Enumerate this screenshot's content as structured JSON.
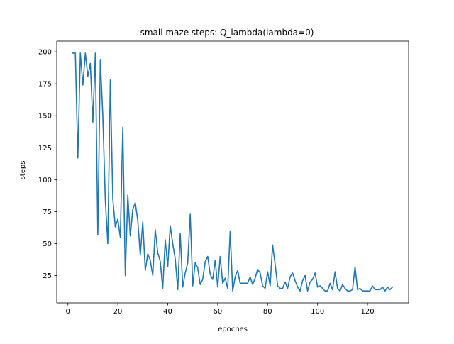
{
  "chart_data": {
    "type": "line",
    "title": "small maze steps: Q_lambda(lambda=0)",
    "xlabel": "epoches",
    "ylabel": "steps",
    "xlim": [
      -4.45,
      136.45
    ],
    "ylim": [
      3.65,
      208.4
    ],
    "xticks": [
      0,
      20,
      40,
      60,
      80,
      100,
      120
    ],
    "yticks": [
      25,
      50,
      75,
      100,
      125,
      150,
      175,
      200
    ],
    "grid": false,
    "legend": "none",
    "series": [
      {
        "color": "#1f77b4",
        "x": [
          2,
          3,
          4,
          5,
          6,
          7,
          8,
          9,
          10,
          11,
          12,
          13,
          14,
          15,
          16,
          17,
          18,
          19,
          20,
          21,
          22,
          23,
          24,
          25,
          26,
          27,
          28,
          29,
          30,
          31,
          32,
          33,
          34,
          35,
          36,
          37,
          38,
          39,
          40,
          41,
          42,
          43,
          44,
          45,
          46,
          47,
          48,
          49,
          50,
          51,
          52,
          53,
          54,
          55,
          56,
          57,
          58,
          59,
          60,
          61,
          62,
          63,
          64,
          65,
          66,
          67,
          68,
          69,
          70,
          71,
          72,
          73,
          74,
          75,
          76,
          77,
          78,
          79,
          80,
          81,
          82,
          83,
          84,
          85,
          86,
          87,
          88,
          89,
          90,
          91,
          92,
          93,
          94,
          95,
          96,
          97,
          98,
          99,
          100,
          101,
          102,
          103,
          104,
          105,
          106,
          107,
          108,
          109,
          110,
          111,
          112,
          113,
          114,
          115,
          116,
          117,
          118,
          119,
          120,
          121,
          122,
          123,
          124,
          125,
          126,
          127,
          128,
          129,
          130
        ],
        "y": [
          199,
          199,
          117,
          199,
          174,
          199,
          181,
          191,
          145,
          199,
          57,
          194,
          150,
          84,
          50,
          178,
          85,
          63,
          69,
          55,
          141,
          25,
          88,
          56,
          77,
          82,
          68,
          41,
          67,
          29,
          42,
          37,
          25,
          61,
          43,
          36,
          15,
          53,
          32,
          64,
          50,
          38,
          14,
          58,
          16,
          27,
          35,
          73,
          17,
          35,
          31,
          18,
          22,
          36,
          40,
          26,
          22,
          37,
          16,
          40,
          19,
          23,
          15,
          60,
          13,
          24,
          29,
          19,
          19,
          19,
          19,
          24,
          18,
          23,
          30,
          27,
          17,
          15,
          28,
          17,
          49,
          34,
          17,
          15,
          15,
          20,
          15,
          24,
          27,
          21,
          16,
          13,
          21,
          25,
          13,
          20,
          22,
          27,
          16,
          17,
          15,
          13,
          13,
          19,
          14,
          28,
          15,
          13,
          18,
          15,
          13,
          13,
          14,
          32,
          14,
          15,
          13,
          13,
          13,
          13,
          17,
          14,
          14,
          14,
          16,
          13,
          16,
          14,
          16
        ]
      }
    ]
  }
}
